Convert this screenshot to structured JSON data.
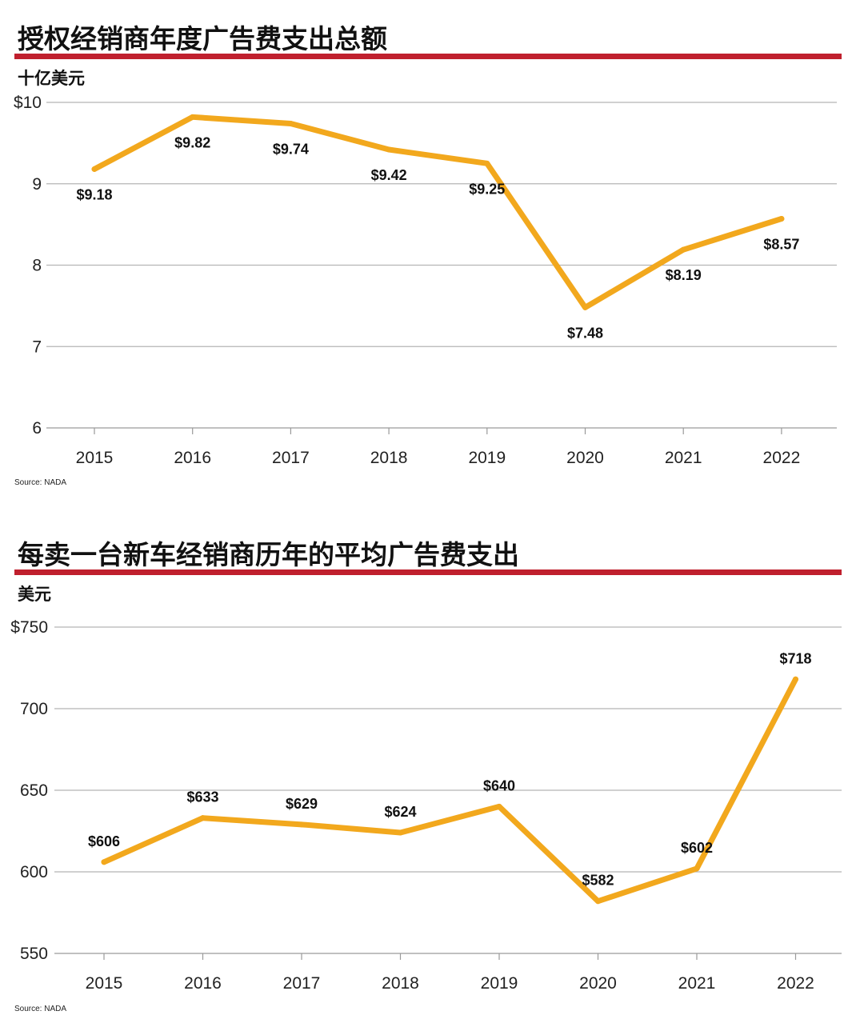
{
  "chart_data": [
    {
      "type": "line",
      "title": "授权经销商年度广告费支出总额",
      "ylabel": "十亿美元",
      "source": "Source: NADA",
      "x": [
        "2015",
        "2016",
        "2017",
        "2018",
        "2019",
        "2020",
        "2021",
        "2022"
      ],
      "series": [
        {
          "values": [
            9.18,
            9.82,
            9.74,
            9.42,
            9.25,
            7.48,
            8.19,
            8.57
          ]
        }
      ],
      "data_labels": [
        "$9.18",
        "$9.82",
        "$9.74",
        "$9.42",
        "$9.25",
        "$7.48",
        "$8.19",
        "$8.57"
      ],
      "ylim": [
        6,
        10
      ],
      "yticks": [
        10,
        9,
        8,
        7,
        6
      ],
      "ytick_labels": [
        "$10",
        "9",
        "8",
        "7",
        "6"
      ],
      "grid": true,
      "line_color": "#f2a81d"
    },
    {
      "type": "line",
      "title": "每卖一台新车经销商历年的平均广告费支出",
      "ylabel": "美元",
      "source": "Source: NADA",
      "x": [
        "2015",
        "2016",
        "2017",
        "2018",
        "2019",
        "2020",
        "2021",
        "2022"
      ],
      "series": [
        {
          "values": [
            606,
            633,
            629,
            624,
            640,
            582,
            602,
            718
          ]
        }
      ],
      "data_labels": [
        "$606",
        "$633",
        "$629",
        "$624",
        "$640",
        "$582",
        "$602",
        "$718"
      ],
      "ylim": [
        550,
        750
      ],
      "yticks": [
        750,
        700,
        650,
        600,
        550
      ],
      "ytick_labels": [
        "$750",
        "700",
        "650",
        "600",
        "550"
      ],
      "grid": true,
      "line_color": "#f2a81d"
    }
  ]
}
